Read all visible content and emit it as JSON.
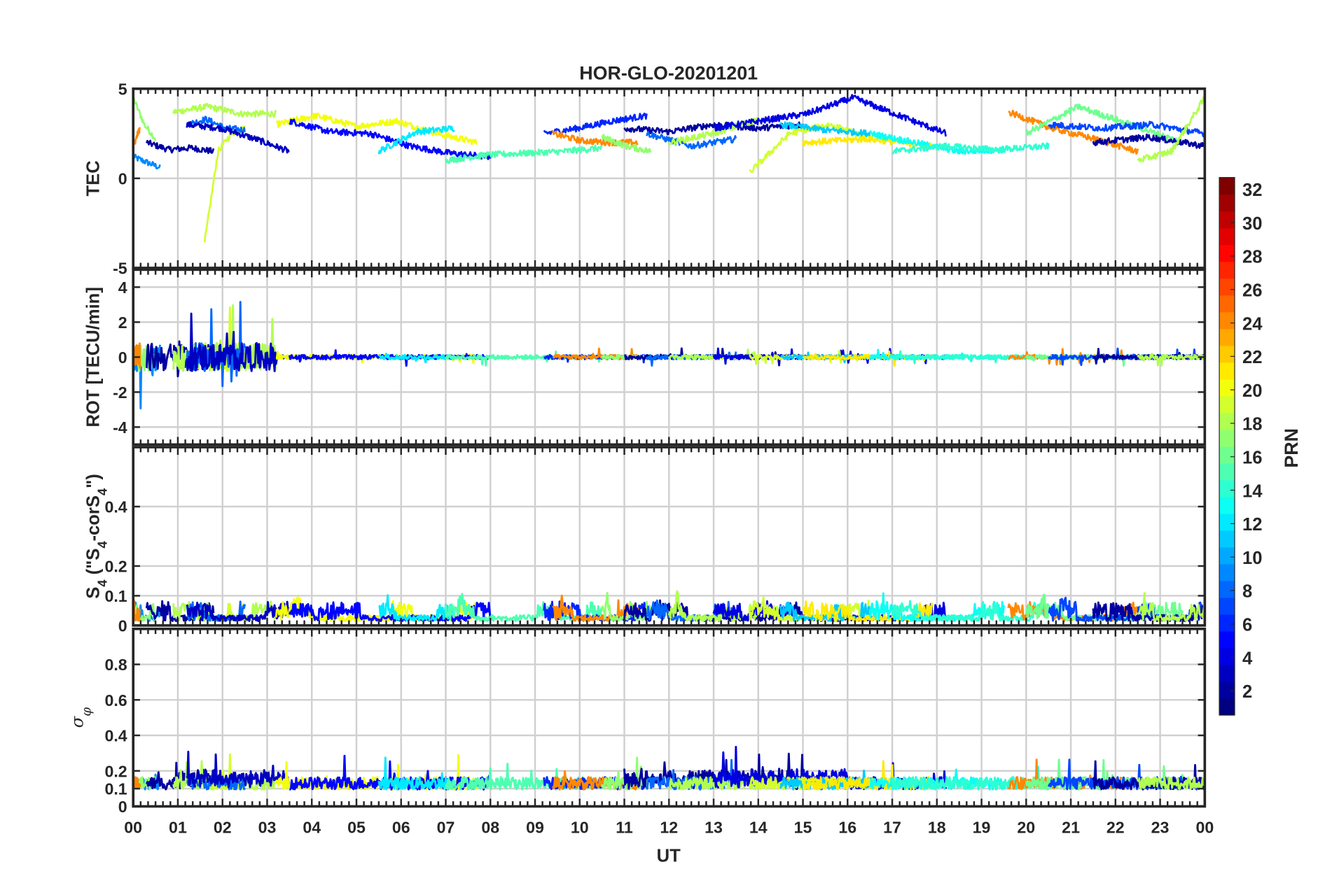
{
  "chart_data": {
    "type": "line",
    "title": "HOR-GLO-20201201",
    "xlabel": "UT",
    "xlim": [
      0,
      24
    ],
    "x_tick_labels": [
      "00",
      "01",
      "02",
      "03",
      "04",
      "05",
      "06",
      "07",
      "08",
      "09",
      "10",
      "11",
      "12",
      "13",
      "14",
      "15",
      "16",
      "17",
      "18",
      "19",
      "20",
      "21",
      "22",
      "23",
      "00"
    ],
    "grid": true,
    "panels": [
      {
        "id": "tec",
        "ylabel": "TEC",
        "ylim": [
          -5,
          5
        ],
        "ticks": [
          -5,
          0,
          5
        ],
        "tick_labels": [
          "-5",
          "0",
          "5"
        ]
      },
      {
        "id": "rot",
        "ylabel": "ROT [TECU/min]",
        "ylim": [
          -5,
          5
        ],
        "ticks": [
          -4,
          -2,
          0,
          2,
          4
        ],
        "tick_labels": [
          "-4",
          "-2",
          "0",
          "2",
          "4"
        ]
      },
      {
        "id": "s4",
        "ylabel_parts": [
          "S",
          "4",
          "  (\"S",
          "4",
          "-corS",
          "4",
          "\")"
        ],
        "ylim": [
          0,
          0.6
        ],
        "ticks": [
          0,
          0.1,
          0.2,
          0.4
        ],
        "tick_labels": [
          "0",
          "0.1",
          "0.2",
          "0.4"
        ]
      },
      {
        "id": "sigma",
        "ylabel_parts": [
          "σ",
          "φ"
        ],
        "ylim": [
          0,
          1
        ],
        "ticks": [
          0,
          0.1,
          0.2,
          0.4,
          0.6,
          0.8
        ],
        "tick_labels": [
          "0",
          "0.1",
          "0.2",
          "0.4",
          "0.6",
          "0.8"
        ]
      }
    ],
    "colorbar": {
      "label": "PRN",
      "range": [
        1,
        32
      ],
      "ticks": [
        2,
        4,
        6,
        8,
        10,
        12,
        14,
        16,
        18,
        20,
        22,
        24,
        26,
        28,
        30,
        32
      ],
      "tick_labels": [
        "2",
        "4",
        "6",
        "8",
        "10",
        "12",
        "14",
        "16",
        "18",
        "20",
        "22",
        "24",
        "26",
        "28",
        "30",
        "32"
      ],
      "colormap": "jet",
      "levels": 32
    },
    "series": [
      {
        "prn": 9,
        "start": 0.0,
        "end": 0.6,
        "tec": [
          1.2,
          0.9,
          0.6
        ]
      },
      {
        "prn": 17,
        "start": 0.0,
        "end": 0.5,
        "tec": [
          4.5,
          3,
          2.2
        ]
      },
      {
        "prn": 24,
        "start": 0.0,
        "end": 0.15,
        "tec": [
          1.8,
          2.8
        ]
      },
      {
        "prn": 2,
        "start": 0.3,
        "end": 1.8,
        "tec": [
          2.0,
          1.6,
          1.7,
          1.5
        ]
      },
      {
        "prn": 18,
        "start": 0.9,
        "end": 3.2,
        "tec": [
          3.7,
          4.0,
          3.6,
          3.6
        ]
      },
      {
        "prn": 19,
        "start": 1.6,
        "end": 2.5,
        "tec": [
          -3.6,
          1.5,
          2.5,
          2.8
        ]
      },
      {
        "prn": 8,
        "start": 1.2,
        "end": 2.5,
        "tec": [
          3.0,
          3.3,
          2.8,
          2.7
        ]
      },
      {
        "prn": 3,
        "start": 1.2,
        "end": 3.5,
        "tec": [
          3.0,
          2.8,
          2.2,
          1.5
        ]
      },
      {
        "prn": 20,
        "start": 3.2,
        "end": 7.7,
        "tec": [
          3.0,
          3.5,
          2.9,
          3.2,
          2.5,
          2.0
        ]
      },
      {
        "prn": 5,
        "start": 3.5,
        "end": 8.0,
        "tec": [
          3.2,
          2.6,
          2.5,
          1.8,
          1.4,
          1.2
        ]
      },
      {
        "prn": 12,
        "start": 5.5,
        "end": 7.2,
        "tec": [
          1.5,
          2.6,
          2.8
        ]
      },
      {
        "prn": 15,
        "start": 7.0,
        "end": 10.5,
        "tec": [
          1.0,
          1.3,
          1.4,
          1.5,
          1.7
        ]
      },
      {
        "prn": 6,
        "start": 9.2,
        "end": 11.5,
        "tec": [
          2.5,
          2.8,
          3.2,
          3.5
        ]
      },
      {
        "prn": 24,
        "start": 9.4,
        "end": 11.3,
        "tec": [
          2.5,
          2.1,
          2.0,
          2.0
        ]
      },
      {
        "prn": 17,
        "start": 10.5,
        "end": 11.6,
        "tec": [
          2.3,
          1.8,
          1.5
        ]
      },
      {
        "prn": 2,
        "start": 11.0,
        "end": 15.0,
        "tec": [
          2.8,
          2.6,
          3.0,
          2.8,
          3.0
        ]
      },
      {
        "prn": 8,
        "start": 11.5,
        "end": 13.5,
        "tec": [
          2.5,
          1.8,
          2.2
        ]
      },
      {
        "prn": 18,
        "start": 12.0,
        "end": 14.0,
        "tec": [
          2.0,
          2.5,
          3.3
        ]
      },
      {
        "prn": 4,
        "start": 13.0,
        "end": 18.2,
        "tec": [
          2.8,
          3.2,
          3.6,
          4.5,
          3.5,
          2.5
        ]
      },
      {
        "prn": 19,
        "start": 13.8,
        "end": 16.5,
        "tec": [
          0.3,
          2.5,
          3.0,
          2.2
        ]
      },
      {
        "prn": 11,
        "start": 14.5,
        "end": 16.5,
        "tec": [
          3.0,
          2.7,
          2.5
        ]
      },
      {
        "prn": 21,
        "start": 15.0,
        "end": 17.9,
        "tec": [
          2.0,
          2.2,
          1.8
        ]
      },
      {
        "prn": 13,
        "start": 16.5,
        "end": 19.5,
        "tec": [
          2.5,
          2.0,
          1.5,
          1.6
        ]
      },
      {
        "prn": 14,
        "start": 17.0,
        "end": 20.5,
        "tec": [
          1.5,
          1.8,
          1.6,
          1.8
        ]
      },
      {
        "prn": 24,
        "start": 19.6,
        "end": 22.5,
        "tec": [
          3.7,
          2.8,
          2.2,
          1.5
        ]
      },
      {
        "prn": 16,
        "start": 20.0,
        "end": 23.5,
        "tec": [
          2.5,
          4.0,
          3.0,
          2.0
        ]
      },
      {
        "prn": 7,
        "start": 20.5,
        "end": 24.0,
        "tec": [
          3.0,
          2.8,
          3.0,
          2.5
        ]
      },
      {
        "prn": 2,
        "start": 21.5,
        "end": 24.0,
        "tec": [
          2.0,
          2.3,
          1.8
        ]
      },
      {
        "prn": 18,
        "start": 22.5,
        "end": 24.0,
        "tec": [
          1.0,
          1.5,
          4.5
        ]
      }
    ]
  }
}
